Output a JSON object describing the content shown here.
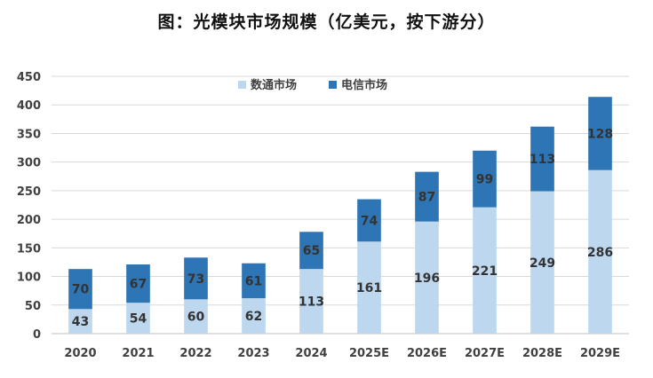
{
  "chart_data": {
    "type": "bar",
    "stacked": true,
    "title": "图：光模块市场规模（亿美元，按下游分）",
    "categories": [
      "2020",
      "2021",
      "2022",
      "2023",
      "2024",
      "2025E",
      "2026E",
      "2027E",
      "2028E",
      "2029E"
    ],
    "series": [
      {
        "name": "数通市场",
        "color": "#bdd7ee",
        "values": [
          43,
          54,
          60,
          62,
          113,
          161,
          196,
          221,
          249,
          286
        ]
      },
      {
        "name": "电信市场",
        "color": "#2e75b6",
        "values": [
          70,
          67,
          73,
          61,
          65,
          74,
          87,
          99,
          113,
          128
        ]
      }
    ],
    "ylim": [
      0,
      450
    ],
    "yticks": [
      "0",
      "50",
      "100",
      "150",
      "200",
      "250",
      "300",
      "350",
      "400",
      "450"
    ],
    "grid": true,
    "legend_position": "top-center"
  }
}
